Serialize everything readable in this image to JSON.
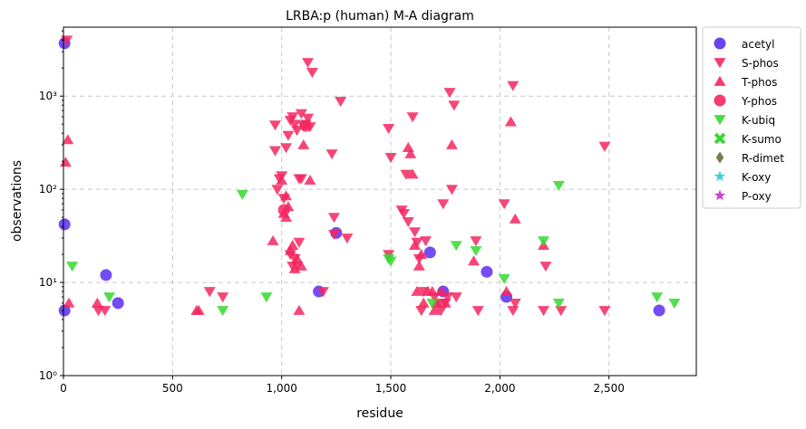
{
  "chart_data": {
    "type": "scatter",
    "title": "LRBA:p (human) M-A diagram",
    "xlabel": "residue",
    "ylabel": "observations",
    "xlim": [
      0,
      2900
    ],
    "ylim": [
      1,
      5500
    ],
    "yscale": "log",
    "grid": true,
    "legend_position": "outside-top-right",
    "x_ticks": [
      0,
      500,
      1000,
      1500,
      2000,
      2500
    ],
    "x_tick_labels": [
      "0",
      "500",
      "1,000",
      "1,500",
      "2,000",
      "2,500"
    ],
    "y_ticks": [
      1,
      10,
      100,
      1000
    ],
    "y_tick_labels": [
      "10⁰",
      "10¹",
      "10²",
      "10³"
    ],
    "series": [
      {
        "name": "acetyl",
        "marker": "circle",
        "color": "#5b2df0",
        "points": [
          [
            5,
            3700
          ],
          [
            5,
            42
          ],
          [
            5,
            5
          ],
          [
            195,
            12
          ],
          [
            250,
            6
          ],
          [
            1170,
            8
          ],
          [
            1250,
            34
          ],
          [
            1680,
            21
          ],
          [
            1740,
            8
          ],
          [
            1940,
            13
          ],
          [
            2030,
            7
          ],
          [
            2730,
            5
          ]
        ]
      },
      {
        "name": "S-phos",
        "marker": "triangle-down",
        "color": "#f5265f",
        "points": [
          [
            15,
            4000
          ],
          [
            160,
            5
          ],
          [
            190,
            5
          ],
          [
            670,
            8
          ],
          [
            730,
            7
          ],
          [
            970,
            490
          ],
          [
            970,
            260
          ],
          [
            980,
            100
          ],
          [
            990,
            130
          ],
          [
            1000,
            140
          ],
          [
            1010,
            80
          ],
          [
            1020,
            280
          ],
          [
            1030,
            380
          ],
          [
            1040,
            550
          ],
          [
            1050,
            600
          ],
          [
            1060,
            500
          ],
          [
            1070,
            430
          ],
          [
            1080,
            130
          ],
          [
            1090,
            650
          ],
          [
            1100,
            480
          ],
          [
            1110,
            500
          ],
          [
            1120,
            580
          ],
          [
            1130,
            470
          ],
          [
            1120,
            2300
          ],
          [
            1140,
            1800
          ],
          [
            1040,
            20
          ],
          [
            1050,
            15
          ],
          [
            1060,
            18
          ],
          [
            1070,
            15
          ],
          [
            1080,
            27
          ],
          [
            1090,
            130
          ],
          [
            1190,
            8
          ],
          [
            1230,
            240
          ],
          [
            1240,
            50
          ],
          [
            1240,
            33
          ],
          [
            1270,
            880
          ],
          [
            1300,
            30
          ],
          [
            1490,
            450
          ],
          [
            1490,
            20
          ],
          [
            1500,
            220
          ],
          [
            1550,
            60
          ],
          [
            1560,
            55
          ],
          [
            1570,
            145
          ],
          [
            1580,
            45
          ],
          [
            1600,
            600
          ],
          [
            1610,
            35
          ],
          [
            1620,
            27
          ],
          [
            1630,
            18
          ],
          [
            1640,
            5
          ],
          [
            1650,
            8
          ],
          [
            1660,
            28
          ],
          [
            1700,
            7
          ],
          [
            1720,
            6
          ],
          [
            1730,
            5
          ],
          [
            1740,
            70
          ],
          [
            1750,
            6
          ],
          [
            1760,
            7
          ],
          [
            1770,
            1100
          ],
          [
            1780,
            100
          ],
          [
            1790,
            800
          ],
          [
            1800,
            7
          ],
          [
            1890,
            28
          ],
          [
            1900,
            5
          ],
          [
            2020,
            70
          ],
          [
            2060,
            1300
          ],
          [
            2060,
            5
          ],
          [
            2070,
            6
          ],
          [
            2200,
            5
          ],
          [
            2210,
            15
          ],
          [
            2280,
            5
          ],
          [
            2480,
            290
          ],
          [
            2480,
            5
          ]
        ]
      },
      {
        "name": "T-phos",
        "marker": "triangle-up",
        "color": "#f5265f",
        "points": [
          [
            10,
            195
          ],
          [
            20,
            340
          ],
          [
            25,
            6
          ],
          [
            155,
            6
          ],
          [
            610,
            5
          ],
          [
            620,
            5
          ],
          [
            960,
            28
          ],
          [
            1000,
            125
          ],
          [
            1010,
            55
          ],
          [
            1020,
            50
          ],
          [
            1020,
            85
          ],
          [
            1030,
            65
          ],
          [
            1040,
            22
          ],
          [
            1050,
            25
          ],
          [
            1060,
            14
          ],
          [
            1070,
            18
          ],
          [
            1090,
            15
          ],
          [
            1100,
            300
          ],
          [
            1130,
            125
          ],
          [
            1080,
            5
          ],
          [
            1580,
            280
          ],
          [
            1590,
            240
          ],
          [
            1600,
            145
          ],
          [
            1610,
            25
          ],
          [
            1620,
            8
          ],
          [
            1630,
            15
          ],
          [
            1640,
            20
          ],
          [
            1650,
            6
          ],
          [
            1670,
            8
          ],
          [
            1690,
            8
          ],
          [
            1700,
            5
          ],
          [
            1710,
            6
          ],
          [
            1730,
            8
          ],
          [
            1750,
            6
          ],
          [
            1780,
            300
          ],
          [
            1880,
            17
          ],
          [
            2030,
            8
          ],
          [
            2050,
            530
          ],
          [
            2070,
            48
          ],
          [
            2200,
            25
          ]
        ]
      },
      {
        "name": "Y-phos",
        "marker": "circle",
        "color": "#f5265f",
        "points": [
          [
            1010,
            60
          ],
          [
            1110,
            480
          ]
        ]
      },
      {
        "name": "K-ubiq",
        "marker": "triangle-down",
        "color": "#35d82e",
        "points": [
          [
            40,
            15
          ],
          [
            210,
            7
          ],
          [
            730,
            5
          ],
          [
            820,
            88
          ],
          [
            930,
            7
          ],
          [
            1490,
            18
          ],
          [
            1500,
            17
          ],
          [
            1690,
            6
          ],
          [
            1800,
            25
          ],
          [
            1890,
            22
          ],
          [
            2020,
            11
          ],
          [
            2200,
            28
          ],
          [
            2270,
            6
          ],
          [
            2270,
            110
          ],
          [
            2720,
            7
          ],
          [
            2800,
            6
          ]
        ]
      },
      {
        "name": "K-sumo",
        "marker": "x",
        "color": "#35d82e",
        "points": []
      },
      {
        "name": "R-dimet",
        "marker": "diamond",
        "color": "#6b6b35",
        "points": []
      },
      {
        "name": "K-oxy",
        "marker": "star",
        "color": "#2ec8d8",
        "points": []
      },
      {
        "name": "P-oxy",
        "marker": "star",
        "color": "#c82ec8",
        "points": []
      }
    ]
  }
}
